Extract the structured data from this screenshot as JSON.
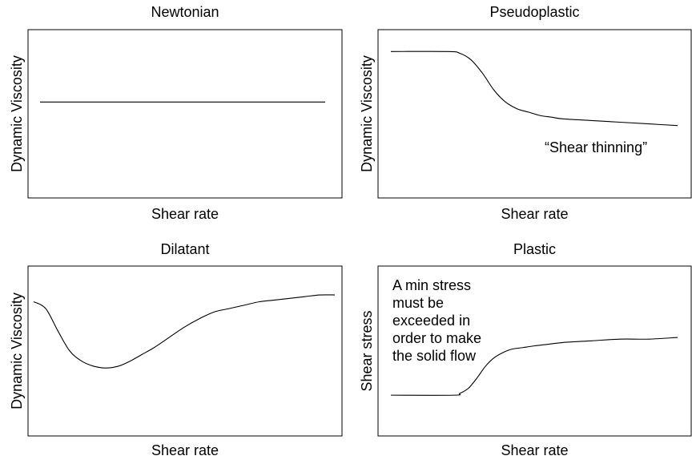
{
  "colors": {
    "text": "#000000",
    "accent_ylabel": "#9b1b1b"
  },
  "chart_data": [
    {
      "type": "line",
      "title": "Newtonian",
      "xlabel": "Shear rate",
      "ylabel": "Dynamic Viscosity",
      "ylabel_color": "#000000",
      "x": [
        0,
        25,
        50,
        75,
        100
      ],
      "y": [
        0.57,
        0.57,
        0.57,
        0.57,
        0.57
      ],
      "annotation": []
    },
    {
      "type": "line",
      "title": "Pseudoplastic",
      "xlabel": "Shear rate",
      "ylabel": "Dynamic Viscosity",
      "ylabel_color": "#000000",
      "x": [
        0,
        20,
        24,
        28,
        32,
        36,
        40,
        44,
        48,
        52,
        56,
        60,
        70,
        80,
        90,
        100
      ],
      "y": [
        0.87,
        0.87,
        0.86,
        0.82,
        0.74,
        0.64,
        0.57,
        0.53,
        0.51,
        0.49,
        0.48,
        0.47,
        0.46,
        0.45,
        0.44,
        0.43
      ],
      "annotation": [
        "“Shear thinning”"
      ]
    },
    {
      "type": "line",
      "title": "Dilatant",
      "xlabel": "Shear rate",
      "ylabel": "Dynamic Viscosity",
      "ylabel_color": "#000000",
      "x": [
        0,
        4,
        8,
        12,
        16,
        20,
        24,
        28,
        32,
        36,
        40,
        45,
        50,
        55,
        60,
        65,
        70,
        75,
        80,
        85,
        90,
        95,
        100
      ],
      "y": [
        0.79,
        0.75,
        0.62,
        0.5,
        0.44,
        0.41,
        0.4,
        0.41,
        0.44,
        0.48,
        0.52,
        0.58,
        0.64,
        0.69,
        0.73,
        0.75,
        0.77,
        0.79,
        0.8,
        0.81,
        0.82,
        0.83,
        0.83
      ],
      "annotation": []
    },
    {
      "type": "line",
      "title": "Plastic",
      "xlabel": "Shear rate",
      "ylabel": "Shear stress",
      "ylabel_color": "#9b1b1b",
      "x": [
        0,
        22,
        24,
        27,
        30,
        33,
        36,
        39,
        42,
        46,
        50,
        55,
        60,
        70,
        80,
        90,
        100
      ],
      "y": [
        0.24,
        0.24,
        0.25,
        0.28,
        0.34,
        0.41,
        0.46,
        0.49,
        0.51,
        0.52,
        0.53,
        0.54,
        0.55,
        0.56,
        0.57,
        0.57,
        0.58
      ],
      "annotation": [
        "A min stress",
        "must be",
        "exceeded in",
        "order to make",
        "the solid flow"
      ]
    }
  ]
}
